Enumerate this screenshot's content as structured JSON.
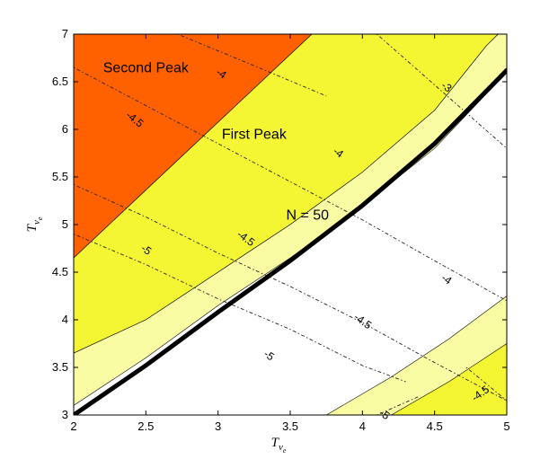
{
  "chart_data": {
    "type": "contour",
    "title": "",
    "xlabel": "T_{ν_e}",
    "ylabel": "T_{ν_e}",
    "xlabel_main": "T",
    "xlabel_sub": "ν",
    "xlabel_subsub": "e",
    "ylabel_main": "T",
    "ylabel_sub": "ν",
    "ylabel_subsub": "e",
    "xlim": [
      2,
      5
    ],
    "ylim": [
      3,
      7
    ],
    "xticks": [
      "2",
      "2.5",
      "3",
      "3.5",
      "4",
      "4.5",
      "5"
    ],
    "yticks": [
      "3",
      "3.5",
      "4",
      "4.5",
      "5",
      "5.5",
      "6",
      "6.5",
      "7"
    ],
    "xtick_values": [
      2,
      2.5,
      3,
      3.5,
      4,
      4.5,
      5
    ],
    "ytick_values": [
      3,
      3.5,
      4,
      4.5,
      5,
      5.5,
      6,
      6.5,
      7
    ],
    "grid": false,
    "regions": [
      {
        "name": "Second Peak",
        "color": "#ff6100",
        "polygon": [
          [
            2,
            4.65
          ],
          [
            3.65,
            7
          ],
          [
            2,
            7
          ]
        ]
      },
      {
        "name": "First Peak",
        "color": "#f4f634",
        "polygon": [
          [
            2,
            3.65
          ],
          [
            2.5,
            4.0
          ],
          [
            3.0,
            4.5
          ],
          [
            3.5,
            5.0
          ],
          [
            4.0,
            5.55
          ],
          [
            4.5,
            6.2
          ],
          [
            4.86,
            6.88
          ],
          [
            4.94,
            7
          ],
          [
            3.65,
            7
          ],
          [
            2,
            4.65
          ]
        ]
      },
      {
        "name": "band",
        "color": "#fafca4",
        "polygon": [
          [
            2,
            3.1
          ],
          [
            2.5,
            3.6
          ],
          [
            3.0,
            4.15
          ],
          [
            3.5,
            4.65
          ],
          [
            4.0,
            5.2
          ],
          [
            4.5,
            5.8
          ],
          [
            5,
            6.6
          ],
          [
            5,
            7
          ],
          [
            4.94,
            7
          ],
          [
            4.86,
            6.88
          ],
          [
            4.5,
            6.2
          ],
          [
            4.0,
            5.55
          ],
          [
            3.5,
            5.0
          ],
          [
            3.0,
            4.5
          ],
          [
            2.5,
            4.0
          ],
          [
            2,
            3.65
          ]
        ]
      },
      {
        "name": "lower-band",
        "color": "#fafca4",
        "polygon": [
          [
            3.75,
            3.0
          ],
          [
            4.2,
            3.4
          ],
          [
            4.6,
            3.8
          ],
          [
            5,
            4.25
          ],
          [
            5,
            3.0
          ]
        ]
      },
      {
        "name": "lower-peak",
        "color": "#f4f634",
        "polygon": [
          [
            4.2,
            3.0
          ],
          [
            4.6,
            3.35
          ],
          [
            5,
            3.75
          ],
          [
            5,
            3.0
          ]
        ]
      }
    ],
    "curve_N50": {
      "label": "N = 50",
      "label_x": 3.62,
      "label_y": 5.05,
      "points": [
        [
          2,
          3.0
        ],
        [
          2.5,
          3.52
        ],
        [
          3.0,
          4.08
        ],
        [
          3.5,
          4.62
        ],
        [
          4.0,
          5.2
        ],
        [
          4.5,
          5.85
        ],
        [
          5,
          6.62
        ]
      ]
    },
    "region_labels": [
      {
        "text": "Second Peak",
        "x": 2.5,
        "y": 6.6
      },
      {
        "text": "First Peak",
        "x": 3.25,
        "y": 5.9
      }
    ],
    "contours": [
      {
        "points": [
          [
            2.72,
            7.0
          ],
          [
            3.2,
            6.7
          ],
          [
            3.75,
            6.35
          ]
        ],
        "labels": [
          {
            "text": "-4",
            "x": 3.02,
            "y": 6.58,
            "angle": 34
          }
        ]
      },
      {
        "points": [
          [
            2.0,
            6.65
          ],
          [
            2.5,
            6.25
          ],
          [
            3.0,
            5.85
          ],
          [
            3.5,
            5.45
          ],
          [
            4.0,
            5.05
          ],
          [
            4.5,
            4.62
          ],
          [
            5.0,
            4.2
          ]
        ],
        "labels": [
          {
            "text": "-4.5",
            "x": 2.42,
            "y": 6.1,
            "angle": 38
          },
          {
            "text": "-4",
            "x": 3.83,
            "y": 5.75,
            "angle": 36
          },
          {
            "text": "-4",
            "x": 4.58,
            "y": 4.42,
            "angle": 36
          }
        ]
      },
      {
        "points": [
          [
            2.0,
            5.42
          ],
          [
            2.5,
            5.08
          ],
          [
            3.0,
            4.7
          ],
          [
            3.5,
            4.35
          ],
          [
            4.0,
            3.97
          ],
          [
            4.5,
            3.55
          ],
          [
            5.0,
            3.15
          ]
        ],
        "labels": [
          {
            "text": "-4.5",
            "x": 3.19,
            "y": 4.85,
            "angle": 36
          },
          {
            "text": "-5",
            "x": 2.5,
            "y": 4.73,
            "angle": 36
          },
          {
            "text": "-4.5",
            "x": 4.0,
            "y": 3.98,
            "angle": 36
          }
        ]
      },
      {
        "points": [
          [
            2.0,
            4.9
          ],
          [
            2.5,
            4.58
          ],
          [
            3.0,
            4.22
          ],
          [
            3.5,
            3.9
          ],
          [
            4.0,
            3.52
          ],
          [
            4.3,
            3.35
          ]
        ],
        "labels": [
          {
            "text": "-5",
            "x": 3.35,
            "y": 3.62,
            "angle": 36
          }
        ]
      },
      {
        "points": [
          [
            4.1,
            7.0
          ],
          [
            4.4,
            6.6
          ],
          [
            4.7,
            6.2
          ],
          [
            5.0,
            5.8
          ]
        ],
        "labels": [
          {
            "text": "-3",
            "x": 4.58,
            "y": 6.44,
            "angle": 36
          }
        ]
      },
      {
        "points": [
          [
            4.1,
            3.0
          ],
          [
            4.4,
            3.2
          ]
        ],
        "labels": [
          {
            "text": "-5",
            "x": 4.15,
            "y": 3.0,
            "angle": 36
          }
        ]
      },
      {
        "points": [
          [
            4.72,
            3.5
          ],
          [
            5.0,
            3.15
          ]
        ],
        "labels": [
          {
            "text": "-4.5",
            "x": 4.82,
            "y": 3.22,
            "angle": -36
          }
        ]
      }
    ]
  }
}
